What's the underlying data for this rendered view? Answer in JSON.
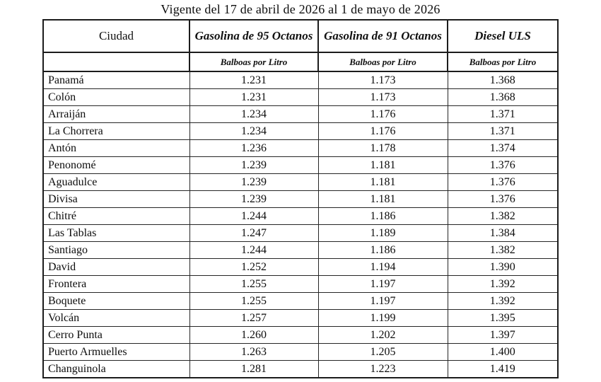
{
  "title": "Vigente del 17 de abril de 2026 al 1 de mayo de 2026",
  "table": {
    "columns": [
      {
        "label": "Ciudad",
        "unit": ""
      },
      {
        "label": "Gasolina de 95 Octanos",
        "unit": "Balboas por Litro"
      },
      {
        "label": "Gasolina de 91 Octanos",
        "unit": "Balboas por Litro"
      },
      {
        "label": "Diesel ULS",
        "unit": "Balboas por Litro"
      }
    ],
    "rows": [
      {
        "ciudad": "Panamá",
        "values": [
          "1.231",
          "1.173",
          "1.368"
        ]
      },
      {
        "ciudad": "Colón",
        "values": [
          "1.231",
          "1.173",
          "1.368"
        ]
      },
      {
        "ciudad": "Arraiján",
        "values": [
          "1.234",
          "1.176",
          "1.371"
        ]
      },
      {
        "ciudad": "La Chorrera",
        "values": [
          "1.234",
          "1.176",
          "1.371"
        ]
      },
      {
        "ciudad": "Antón",
        "values": [
          "1.236",
          "1.178",
          "1.374"
        ]
      },
      {
        "ciudad": "Penonomé",
        "values": [
          "1.239",
          "1.181",
          "1.376"
        ]
      },
      {
        "ciudad": "Aguadulce",
        "values": [
          "1.239",
          "1.181",
          "1.376"
        ]
      },
      {
        "ciudad": "Divisa",
        "values": [
          "1.239",
          "1.181",
          "1.376"
        ]
      },
      {
        "ciudad": "Chitré",
        "values": [
          "1.244",
          "1.186",
          "1.382"
        ]
      },
      {
        "ciudad": "Las Tablas",
        "values": [
          "1.247",
          "1.189",
          "1.384"
        ]
      },
      {
        "ciudad": "Santiago",
        "values": [
          "1.244",
          "1.186",
          "1.382"
        ]
      },
      {
        "ciudad": "David",
        "values": [
          "1.252",
          "1.194",
          "1.390"
        ]
      },
      {
        "ciudad": "Frontera",
        "values": [
          "1.255",
          "1.197",
          "1.392"
        ]
      },
      {
        "ciudad": "Boquete",
        "values": [
          "1.255",
          "1.197",
          "1.392"
        ]
      },
      {
        "ciudad": "Volcán",
        "values": [
          "1.257",
          "1.199",
          "1.395"
        ]
      },
      {
        "ciudad": "Cerro Punta",
        "values": [
          "1.260",
          "1.202",
          "1.397"
        ]
      },
      {
        "ciudad": "Puerto Armuelles",
        "values": [
          "1.263",
          "1.205",
          "1.400"
        ]
      },
      {
        "ciudad": "Changuinola",
        "values": [
          "1.281",
          "1.223",
          "1.419"
        ]
      }
    ]
  }
}
